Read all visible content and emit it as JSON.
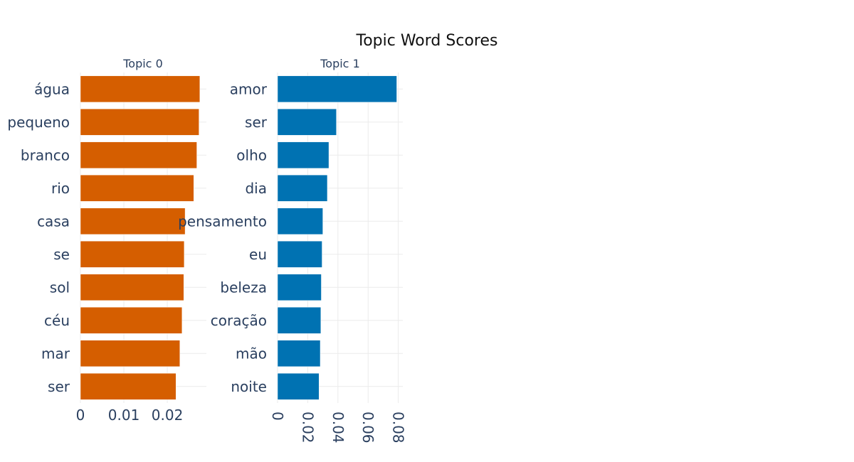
{
  "title": "Topic Word Scores",
  "colors": {
    "topic0": "#D55E00",
    "topic1": "#0072B2",
    "grid": "#ebebeb",
    "text": "#2a3f5f"
  },
  "chart_data": [
    {
      "type": "bar",
      "orientation": "horizontal",
      "subplot_title": "Topic 0",
      "color": "#D55E00",
      "categories": [
        "água",
        "pequeno",
        "branco",
        "rio",
        "casa",
        "se",
        "sol",
        "céu",
        "mar",
        "ser"
      ],
      "values": [
        0.0275,
        0.0273,
        0.0268,
        0.0261,
        0.0241,
        0.0239,
        0.0238,
        0.0234,
        0.0229,
        0.022
      ],
      "xlim": [
        0,
        0.029
      ],
      "xticks": [
        0,
        0.01,
        0.02
      ],
      "xtick_labels": [
        "0",
        "0.01",
        "0.02"
      ],
      "grid": true
    },
    {
      "type": "bar",
      "orientation": "horizontal",
      "subplot_title": "Topic 1",
      "color": "#0072B2",
      "categories": [
        "amor",
        "ser",
        "olho",
        "dia",
        "pensamento",
        "eu",
        "beleza",
        "coração",
        "mão",
        "noite"
      ],
      "values": [
        0.079,
        0.039,
        0.034,
        0.033,
        0.03,
        0.0295,
        0.029,
        0.0287,
        0.0283,
        0.0275
      ],
      "xlim": [
        0,
        0.083
      ],
      "xticks": [
        0,
        0.02,
        0.04,
        0.06,
        0.08
      ],
      "xtick_labels": [
        "0",
        "0.02",
        "0.04",
        "0.06",
        "0.08"
      ],
      "xtick_rotation": 90,
      "grid": true
    }
  ]
}
